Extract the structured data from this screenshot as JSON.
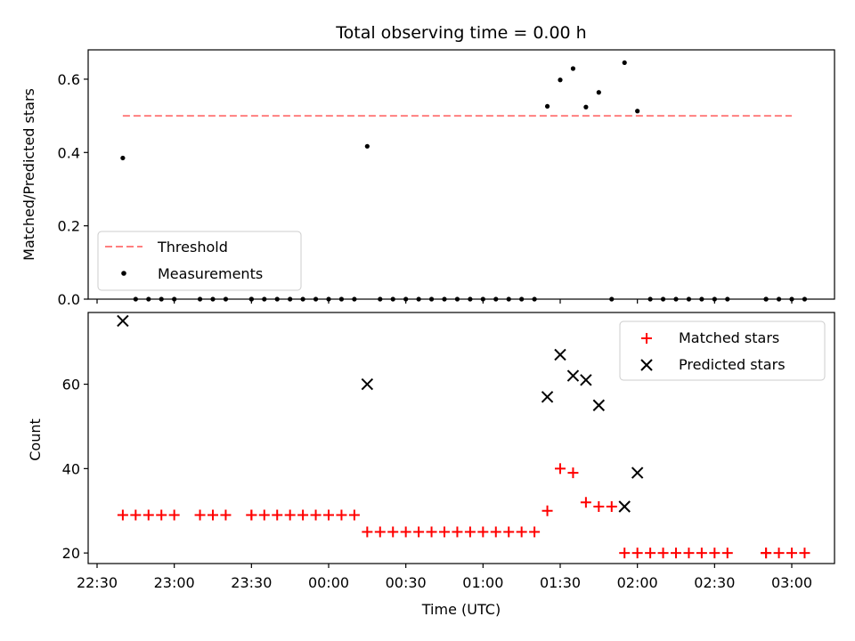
{
  "chart_data": [
    {
      "type": "scatter",
      "title": "Total observing time = 0.00 h",
      "ylabel": "Matched/Predicted stars",
      "ylim": [
        0,
        0.68
      ],
      "yticks": [
        "0.0",
        "0.2",
        "0.4",
        "0.6"
      ],
      "ytick_values": [
        0.0,
        0.2,
        0.4,
        0.6
      ],
      "legend_position": "lower-left",
      "threshold": {
        "name": "Threshold",
        "value": 0.5,
        "color": "#ff7f7f",
        "style": "dashed"
      },
      "series": [
        {
          "name": "Measurements",
          "color": "#000000",
          "marker": "dot",
          "x": [
            "22:40",
            "22:45",
            "22:50",
            "22:55",
            "23:00",
            "23:10",
            "23:15",
            "23:20",
            "23:30",
            "23:30",
            "23:35",
            "23:40",
            "23:45",
            "23:50",
            "23:55",
            "00:00",
            "00:05",
            "00:10",
            "00:15",
            "00:20",
            "00:25",
            "00:30",
            "00:35",
            "00:40",
            "00:45",
            "00:50",
            "00:55",
            "01:00",
            "01:05",
            "01:10",
            "01:15",
            "01:20",
            "01:25",
            "01:30",
            "01:35",
            "01:40",
            "01:45",
            "01:50",
            "01:55",
            "02:00",
            "02:05",
            "02:10",
            "02:15",
            "02:20",
            "02:25",
            "02:30",
            "02:35",
            "02:50",
            "02:50",
            "02:55",
            "03:00",
            "03:05"
          ],
          "y": [
            0.385,
            0,
            0,
            0,
            0,
            0,
            0,
            0,
            0,
            0,
            0,
            0,
            0,
            0,
            0,
            0,
            0,
            0,
            0.417,
            0,
            0,
            0,
            0,
            0,
            0,
            0,
            0,
            0,
            0,
            0,
            0,
            0,
            0.526,
            0.598,
            0.629,
            0.524,
            0.564,
            0,
            0.645,
            0.513,
            0,
            0,
            0,
            0,
            0,
            0,
            0,
            0,
            0,
            0,
            0,
            0
          ]
        }
      ]
    },
    {
      "type": "scatter",
      "xlabel": "Time (UTC)",
      "ylabel": "Count",
      "ylim": [
        17.5,
        77
      ],
      "yticks": [
        "20",
        "40",
        "60"
      ],
      "ytick_values": [
        20,
        40,
        60
      ],
      "xticks": [
        "22:30",
        "23:00",
        "23:30",
        "00:00",
        "00:30",
        "01:00",
        "01:30",
        "02:00",
        "02:30",
        "03:00"
      ],
      "legend_position": "top-right",
      "series": [
        {
          "name": "Matched stars",
          "color": "#ff0000",
          "marker": "plus",
          "x": [
            "22:40",
            "22:45",
            "22:50",
            "22:55",
            "23:00",
            "23:10",
            "23:15",
            "23:20",
            "23:30",
            "23:30",
            "23:35",
            "23:40",
            "23:45",
            "23:50",
            "23:55",
            "00:00",
            "00:05",
            "00:10",
            "00:15",
            "00:20",
            "00:25",
            "00:30",
            "00:35",
            "00:40",
            "00:45",
            "00:50",
            "00:55",
            "01:00",
            "01:05",
            "01:10",
            "01:15",
            "01:20",
            "01:25",
            "01:30",
            "01:35",
            "01:40",
            "01:45",
            "01:50",
            "01:55",
            "02:00",
            "02:05",
            "02:10",
            "02:15",
            "02:20",
            "02:25",
            "02:30",
            "02:35",
            "02:50",
            "02:50",
            "02:55",
            "03:00",
            "03:05"
          ],
          "y": [
            29,
            29,
            29,
            29,
            29,
            29,
            29,
            29,
            29,
            29,
            29,
            29,
            29,
            29,
            29,
            29,
            29,
            29,
            25,
            25,
            25,
            25,
            25,
            25,
            25,
            25,
            25,
            25,
            25,
            25,
            25,
            25,
            30,
            40,
            39,
            32,
            31,
            31,
            20,
            20,
            20,
            20,
            20,
            20,
            20,
            20,
            20,
            20,
            20,
            20,
            20,
            20
          ]
        },
        {
          "name": "Predicted stars",
          "color": "#000000",
          "marker": "x",
          "x": [
            "22:40",
            "00:15",
            "01:25",
            "01:30",
            "01:35",
            "01:40",
            "01:45",
            "01:55",
            "02:00"
          ],
          "y": [
            75,
            60,
            57,
            67,
            62,
            61,
            55,
            31,
            39
          ]
        }
      ]
    }
  ]
}
